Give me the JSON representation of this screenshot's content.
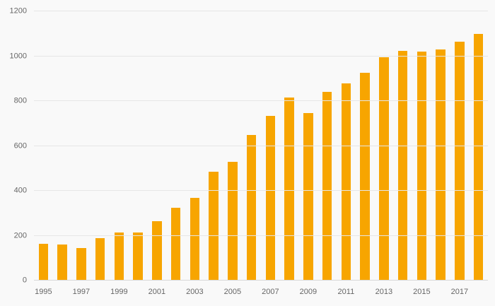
{
  "chart_data": {
    "type": "bar",
    "title": "",
    "xlabel": "",
    "ylabel": "",
    "categories": [
      "1995",
      "1996",
      "1997",
      "1998",
      "1999",
      "2000",
      "2001",
      "2002",
      "2003",
      "2004",
      "2005",
      "2006",
      "2007",
      "2008",
      "2009",
      "2010",
      "2011",
      "2012",
      "2013",
      "2014",
      "2015",
      "2016",
      "2017",
      "2018"
    ],
    "values": [
      165,
      160,
      145,
      190,
      215,
      215,
      265,
      325,
      370,
      485,
      530,
      650,
      735,
      815,
      745,
      840,
      880,
      925,
      995,
      1025,
      1020,
      1030,
      1065,
      1100
    ],
    "ylim": [
      0,
      1200
    ],
    "yticks": [
      0,
      200,
      400,
      600,
      800,
      1000,
      1200
    ],
    "xtick_labels": [
      "1995",
      "1997",
      "1999",
      "2001",
      "2003",
      "2005",
      "2007",
      "2009",
      "2011",
      "2013",
      "2015",
      "2017"
    ],
    "grid": true,
    "legend": "none",
    "bar_color": "#f7a500",
    "background_color": "#f9f9f9",
    "gridline_color": "#e6e6e6",
    "tick_label_color": "#666666"
  }
}
